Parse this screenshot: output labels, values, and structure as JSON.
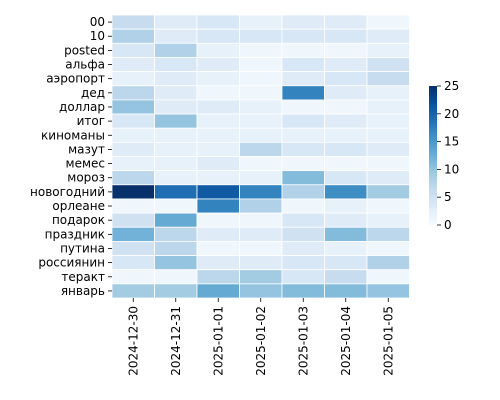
{
  "chart_data": {
    "type": "heatmap",
    "title": "",
    "xlabel": "",
    "ylabel": "",
    "x": [
      "2024-12-30",
      "2024-12-31",
      "2025-01-01",
      "2025-01-02",
      "2025-01-03",
      "2025-01-04",
      "2025-01-05"
    ],
    "y": [
      "00",
      "10",
      "posted",
      "альфа",
      "аэропорт",
      "дед",
      "доллар",
      "итог",
      "киноманы",
      "мазут",
      "мемес",
      "мороз",
      "новогодний",
      "орлеане",
      "подарок",
      "праздник",
      "путина",
      "россиянин",
      "теракт",
      "январь"
    ],
    "values": [
      [
        6,
        3,
        4,
        2,
        3,
        3,
        1
      ],
      [
        8,
        3,
        4,
        4,
        4,
        4,
        3
      ],
      [
        4,
        8,
        2,
        1,
        1,
        1,
        2
      ],
      [
        3,
        4,
        3,
        1,
        4,
        3,
        5
      ],
      [
        2,
        3,
        2,
        1,
        3,
        4,
        6
      ],
      [
        7,
        3,
        1,
        1,
        17,
        3,
        2
      ],
      [
        10,
        3,
        3,
        2,
        1,
        1,
        2
      ],
      [
        4,
        10,
        2,
        2,
        4,
        3,
        2
      ],
      [
        2,
        2,
        2,
        2,
        2,
        2,
        2
      ],
      [
        3,
        2,
        2,
        7,
        4,
        4,
        3
      ],
      [
        2,
        2,
        3,
        1,
        1,
        1,
        1
      ],
      [
        7,
        2,
        2,
        2,
        11,
        4,
        3
      ],
      [
        25,
        19,
        21,
        17,
        8,
        16,
        9
      ],
      [
        1,
        1,
        17,
        8,
        1,
        2,
        1
      ],
      [
        5,
        13,
        1,
        1,
        4,
        3,
        2
      ],
      [
        12,
        7,
        3,
        3,
        5,
        11,
        7
      ],
      [
        5,
        7,
        1,
        1,
        3,
        2,
        1
      ],
      [
        4,
        10,
        3,
        3,
        4,
        4,
        8
      ],
      [
        1,
        1,
        7,
        9,
        4,
        6,
        1
      ],
      [
        9,
        9,
        13,
        10,
        11,
        11,
        10
      ]
    ],
    "colorbar": {
      "min": 0,
      "max": 25,
      "ticks": [
        0,
        5,
        10,
        15,
        20,
        25
      ]
    },
    "colormap": [
      "#f7fbff",
      "#deebf7",
      "#c6dbef",
      "#9ecae1",
      "#6baed6",
      "#4292c6",
      "#2171b5",
      "#08519c",
      "#08306b"
    ],
    "cell_border_color": "#ffffff",
    "legend": "right"
  }
}
